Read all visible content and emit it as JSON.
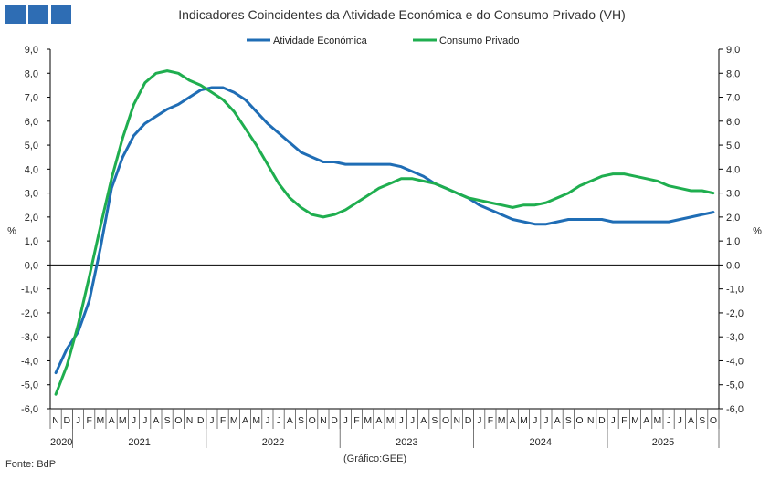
{
  "title": "Indicadores Coincidentes da Atividade Económica e do Consumo Privado (VH)",
  "source": "Fonte: BdP",
  "credit": "(Gráfico:GEE)",
  "colors": {
    "atividade": "#1f6db5",
    "consumo": "#1fae4f",
    "logo": "#2e6db4"
  },
  "chart_data": {
    "type": "line",
    "ylim": [
      -6,
      9
    ],
    "yticks": [
      "-6,0",
      "-5,0",
      "-4,0",
      "-3,0",
      "-2,0",
      "-1,0",
      "0,0",
      "1,0",
      "2,0",
      "3,0",
      "4,0",
      "5,0",
      "6,0",
      "7,0",
      "8,0",
      "9,0"
    ],
    "yticks_right": [
      "-6,0",
      "-5,0",
      "-4,0",
      "-3,0",
      "-2,0",
      "-1,0",
      "0,0",
      "1,0",
      "2,0",
      "3,0",
      "4,0",
      "5,0",
      "6,0",
      "7,0",
      "8,0",
      "9,0"
    ],
    "ylabel_left": "%",
    "ylabel_right": "%",
    "months": [
      "N",
      "D",
      "J",
      "F",
      "M",
      "A",
      "M",
      "J",
      "J",
      "A",
      "S",
      "O",
      "N",
      "D",
      "J",
      "F",
      "M",
      "A",
      "M",
      "J",
      "J",
      "A",
      "S",
      "O",
      "N",
      "D",
      "J",
      "F",
      "M",
      "A",
      "M",
      "J",
      "J",
      "A",
      "S",
      "O",
      "N",
      "D",
      "J",
      "F",
      "M",
      "A",
      "M",
      "J",
      "J",
      "A",
      "S",
      "O",
      "N",
      "D",
      "J",
      "F",
      "M",
      "A",
      "M",
      "J",
      "J",
      "A",
      "S",
      "O"
    ],
    "years": [
      {
        "label": "2020",
        "start": 0,
        "end": 1
      },
      {
        "label": "2021",
        "start": 2,
        "end": 13
      },
      {
        "label": "2022",
        "start": 14,
        "end": 25
      },
      {
        "label": "2023",
        "start": 26,
        "end": 37
      },
      {
        "label": "2024",
        "start": 38,
        "end": 49
      },
      {
        "label": "2025",
        "start": 50,
        "end": 59
      }
    ],
    "series": [
      {
        "name": "Atividade Económica",
        "color": "#1f6db5",
        "values": [
          -4.5,
          -3.5,
          -2.8,
          -1.5,
          0.7,
          3.2,
          4.5,
          5.4,
          5.9,
          6.2,
          6.5,
          6.7,
          7.0,
          7.3,
          7.4,
          7.4,
          7.2,
          6.9,
          6.4,
          5.9,
          5.5,
          5.1,
          4.7,
          4.5,
          4.3,
          4.3,
          4.2,
          4.2,
          4.2,
          4.2,
          4.2,
          4.1,
          3.9,
          3.7,
          3.4,
          3.2,
          3.0,
          2.8,
          2.5,
          2.3,
          2.1,
          1.9,
          1.8,
          1.7,
          1.7,
          1.8,
          1.9,
          1.9,
          1.9,
          1.9,
          1.8,
          1.8,
          1.8,
          1.8,
          1.8,
          1.8,
          1.9,
          2.0,
          2.1,
          2.2
        ]
      },
      {
        "name": "Consumo Privado",
        "color": "#1fae4f",
        "values": [
          -5.4,
          -4.2,
          -2.5,
          -0.5,
          1.6,
          3.6,
          5.3,
          6.7,
          7.6,
          8.0,
          8.1,
          8.0,
          7.7,
          7.5,
          7.2,
          6.9,
          6.4,
          5.7,
          5.0,
          4.2,
          3.4,
          2.8,
          2.4,
          2.1,
          2.0,
          2.1,
          2.3,
          2.6,
          2.9,
          3.2,
          3.4,
          3.6,
          3.6,
          3.5,
          3.4,
          3.2,
          3.0,
          2.8,
          2.7,
          2.6,
          2.5,
          2.4,
          2.5,
          2.5,
          2.6,
          2.8,
          3.0,
          3.3,
          3.5,
          3.7,
          3.8,
          3.8,
          3.7,
          3.6,
          3.5,
          3.3,
          3.2,
          3.1,
          3.1,
          3.0
        ]
      }
    ]
  }
}
